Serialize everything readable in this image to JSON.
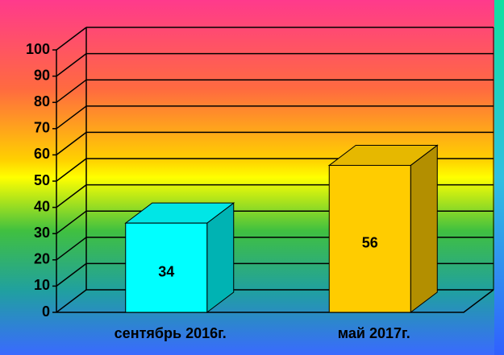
{
  "chart_data": {
    "type": "bar3d",
    "categories": [
      "сентябрь 2016г.",
      "май 2017г."
    ],
    "values": [
      34,
      56
    ],
    "colors": [
      "#00ffff",
      "#ffcc00"
    ],
    "ylim": [
      0,
      100
    ],
    "yticks": [
      0,
      10,
      20,
      30,
      40,
      50,
      60,
      70,
      80,
      90,
      100
    ],
    "grid": true
  }
}
